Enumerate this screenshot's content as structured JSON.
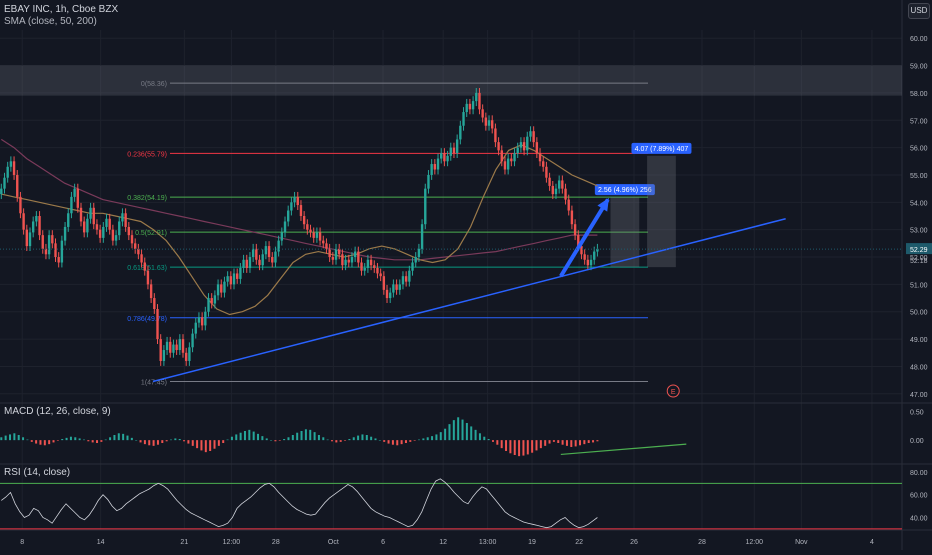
{
  "header": {
    "symbol_line": "EBAY INC, 1h, Cboe BZX",
    "sma_line": "SMA (close, 50, 200)",
    "currency": "USD"
  },
  "colors": {
    "background": "#131722",
    "grid": "#1e222d",
    "candle_up": "#26a69a",
    "candle_down": "#ef5350",
    "sma50": "#9c7a4a",
    "sma200": "#7a3a5a",
    "trendline": "#2962ff",
    "fib_red": "#f23645",
    "fib_gray": "#787b86",
    "fib_green": "#4caf50",
    "fib_teal": "#089981",
    "fib_blue": "#2962ff",
    "macd_pos": "#26a69a",
    "macd_neg": "#ef5350",
    "rsi_line": "#d1d4dc",
    "rsi_upper": "#4caf50",
    "rsi_lower": "#f23645",
    "price_label": "#1e5a6b"
  },
  "chart_data": {
    "type": "candlestick",
    "price_axis": {
      "ylim": [
        46.7,
        60.3
      ],
      "ticks": [
        47,
        48,
        49,
        50,
        51,
        52,
        53,
        54,
        55,
        56,
        57,
        58,
        59,
        60
      ],
      "tick_labels": [
        "47.00",
        "48.00",
        "49.00",
        "50.00",
        "51.00",
        "52.00",
        "53.00",
        "54.00",
        "55.00",
        "56.00",
        "57.00",
        "58.00",
        "59.00",
        "60.00"
      ],
      "current_price": "52.29",
      "current_price_value": 52.29,
      "secondary_label": "52.18",
      "secondary_value": 52.18
    },
    "time_axis": {
      "labels": [
        "8",
        "14",
        "21",
        "12:00",
        "28",
        "Oct",
        "6",
        "12",
        "13:00",
        "19",
        "22",
        "26",
        "28",
        "12:00",
        "Nov",
        "4"
      ],
      "bar_index": [
        8,
        38,
        70,
        88,
        105,
        127,
        146,
        169,
        186,
        203,
        221,
        242,
        268,
        288,
        306,
        333
      ]
    },
    "candles_close": [
      54.5,
      54.9,
      55.3,
      55.5,
      55.0,
      54.2,
      53.6,
      53.0,
      52.4,
      52.9,
      53.3,
      53.5,
      52.8,
      52.3,
      52.1,
      52.8,
      52.5,
      52.0,
      51.8,
      52.6,
      53.1,
      53.6,
      54.2,
      54.5,
      53.8,
      53.3,
      52.9,
      53.4,
      53.8,
      53.2,
      53.0,
      52.7,
      53.1,
      53.4,
      53.0,
      52.6,
      52.8,
      53.3,
      53.6,
      53.1,
      52.8,
      52.5,
      52.3,
      52.1,
      51.8,
      51.5,
      51.0,
      50.5,
      50.1,
      49.0,
      48.2,
      48.6,
      48.9,
      48.5,
      48.8,
      48.6,
      49.0,
      48.5,
      48.2,
      48.7,
      49.2,
      49.6,
      49.8,
      49.5,
      50.0,
      50.5,
      50.3,
      50.6,
      51.0,
      50.7,
      51.1,
      51.3,
      51.0,
      51.4,
      51.2,
      51.6,
      51.9,
      51.6,
      52.0,
      52.3,
      51.9,
      51.7,
      52.1,
      52.4,
      52.0,
      51.8,
      52.2,
      52.6,
      52.9,
      53.3,
      53.7,
      54.0,
      54.2,
      53.9,
      53.5,
      53.2,
      53.0,
      52.9,
      52.7,
      52.9,
      52.6,
      52.5,
      52.3,
      52.0,
      51.9,
      52.3,
      52.1,
      51.7,
      51.9,
      51.8,
      52.0,
      52.2,
      51.8,
      51.5,
      51.6,
      51.9,
      51.7,
      51.6,
      51.4,
      51.3,
      50.8,
      50.5,
      50.7,
      51.0,
      50.8,
      51.0,
      51.3,
      51.1,
      51.5,
      51.8,
      52.0,
      52.3,
      53.2,
      54.5,
      55.0,
      55.4,
      55.2,
      55.6,
      55.8,
      55.5,
      55.7,
      56.0,
      55.8,
      56.3,
      56.8,
      57.3,
      57.6,
      57.4,
      57.7,
      58.0,
      57.4,
      57.1,
      56.8,
      57.0,
      56.7,
      56.2,
      55.9,
      55.5,
      55.2,
      55.6,
      55.5,
      55.8,
      56.0,
      56.2,
      55.9,
      56.4,
      56.6,
      56.2,
      55.8,
      55.5,
      55.3,
      54.9,
      54.6,
      54.3,
      54.5,
      54.8,
      54.5,
      54.1,
      53.7,
      53.2,
      52.8,
      52.4,
      52.1,
      51.9,
      51.7,
      51.9,
      52.2,
      52.3
    ],
    "sma50_values": [
      54.3,
      54.2,
      54.1,
      54.0,
      53.9,
      53.8,
      53.7,
      53.6,
      53.6,
      53.5,
      53.4,
      53.3,
      53.0,
      52.6,
      52.0,
      51.3,
      50.6,
      50.1,
      49.9,
      50.0,
      50.2,
      50.6,
      51.2,
      51.8,
      52.1,
      52.2,
      52.1,
      52.0,
      52.1,
      52.3,
      52.4,
      52.3,
      52.1,
      51.9,
      51.8,
      51.9,
      52.3,
      53.1,
      54.2,
      55.2,
      55.9,
      56.1,
      55.9,
      55.6,
      55.3,
      55.0,
      54.8,
      54.6
    ],
    "sma200_values": [
      56.3,
      56.0,
      55.6,
      55.3,
      55.0,
      54.7,
      54.5,
      54.3,
      54.1,
      54.0,
      53.9,
      53.8,
      53.7,
      53.6,
      53.5,
      53.4,
      53.3,
      53.2,
      53.1,
      53.0,
      52.9,
      52.8,
      52.7,
      52.6,
      52.5,
      52.4,
      52.3,
      52.2,
      52.1,
      52.0,
      51.95,
      51.9,
      51.9,
      51.9,
      51.95,
      52.0,
      52.05,
      52.1,
      52.15,
      52.2,
      52.3,
      52.4,
      52.5,
      52.6,
      52.7,
      52.8,
      52.8,
      52.8
    ],
    "fibonacci": [
      {
        "label": "0(58.36)",
        "price": 58.36,
        "tone": "gray"
      },
      {
        "label": "0.236(55.79)",
        "price": 55.79,
        "tone": "red"
      },
      {
        "label": "0.382(54.19)",
        "price": 54.19,
        "tone": "green"
      },
      {
        "label": "0.5(52.91)",
        "price": 52.91,
        "tone": "green"
      },
      {
        "label": "0.618(51.63)",
        "price": 51.63,
        "tone": "teal"
      },
      {
        "label": "0.786(49.78)",
        "price": 49.78,
        "tone": "blue"
      },
      {
        "label": "1(47.45)",
        "price": 47.45,
        "tone": "gray"
      }
    ],
    "resistance_zone": [
      57.9,
      59.0
    ],
    "trendline": {
      "from": {
        "bar": 58,
        "price": 47.45
      },
      "to": {
        "bar": 300,
        "price": 53.4
      }
    },
    "arrow": {
      "from": {
        "bar": 214,
        "price": 51.3
      },
      "to": {
        "bar": 232,
        "price": 54.1
      }
    },
    "projections": [
      {
        "label": "2.56 (4.96%) 256",
        "from_price": 51.63,
        "to_price": 54.19,
        "bar_from": 233,
        "bar_to": 244
      },
      {
        "label": "4.07 (7.89%) 407",
        "from_price": 51.63,
        "to_price": 55.7,
        "bar_from": 247,
        "bar_to": 258
      }
    ],
    "earnings_marker": {
      "label": "E",
      "bar": 257
    },
    "macd": {
      "title": "MACD (12, 26, close, 9)",
      "ticks": [
        0.5,
        0.0
      ],
      "tick_labels": [
        "0.50",
        "0.00"
      ],
      "ylim": [
        -0.4,
        0.65
      ],
      "histogram": [
        0.05,
        0.08,
        0.1,
        0.12,
        0.09,
        0.05,
        0.01,
        -0.03,
        -0.06,
        -0.08,
        -0.09,
        -0.07,
        -0.04,
        -0.01,
        0.02,
        0.04,
        0.06,
        0.05,
        0.03,
        0.01,
        -0.02,
        -0.04,
        -0.05,
        -0.03,
        0.01,
        0.05,
        0.09,
        0.12,
        0.11,
        0.08,
        0.04,
        0.0,
        -0.04,
        -0.07,
        -0.09,
        -0.1,
        -0.08,
        -0.05,
        -0.02,
        0.01,
        0.03,
        0.02,
        -0.02,
        -0.06,
        -0.1,
        -0.14,
        -0.18,
        -0.21,
        -0.19,
        -0.15,
        -0.1,
        -0.05,
        0.01,
        0.06,
        0.1,
        0.13,
        0.16,
        0.18,
        0.15,
        0.11,
        0.07,
        0.03,
        0.0,
        -0.02,
        -0.01,
        0.02,
        0.05,
        0.09,
        0.13,
        0.16,
        0.19,
        0.18,
        0.14,
        0.09,
        0.05,
        0.01,
        -0.02,
        -0.04,
        -0.03,
        -0.01,
        0.02,
        0.05,
        0.08,
        0.1,
        0.09,
        0.06,
        0.03,
        0.0,
        -0.03,
        -0.06,
        -0.08,
        -0.09,
        -0.07,
        -0.05,
        -0.03,
        -0.01,
        0.01,
        0.03,
        0.05,
        0.07,
        0.1,
        0.14,
        0.2,
        0.28,
        0.35,
        0.4,
        0.36,
        0.3,
        0.24,
        0.18,
        0.12,
        0.06,
        0.02,
        -0.03,
        -0.08,
        -0.14,
        -0.19,
        -0.23,
        -0.26,
        -0.28,
        -0.27,
        -0.25,
        -0.22,
        -0.18,
        -0.14,
        -0.1,
        -0.06,
        -0.03,
        -0.05,
        -0.08,
        -0.1,
        -0.12,
        -0.11,
        -0.09,
        -0.07,
        -0.05,
        -0.04,
        -0.02
      ],
      "support_line": {
        "from": {
          "bar": 214,
          "value": -0.25
        },
        "to": {
          "bar": 262,
          "value": -0.07
        }
      }
    },
    "rsi": {
      "title": "RSI (14, close)",
      "ticks": [
        80,
        60,
        40
      ],
      "tick_labels": [
        "80.00",
        "60.00",
        "40.00"
      ],
      "ylim": [
        29,
        87
      ],
      "upper": 70,
      "lower": 30,
      "values": [
        55,
        58,
        62,
        52,
        45,
        40,
        42,
        48,
        46,
        40,
        38,
        35,
        41,
        47,
        52,
        48,
        44,
        40,
        38,
        42,
        48,
        55,
        60,
        56,
        50,
        46,
        48,
        52,
        55,
        58,
        61,
        63,
        65,
        68,
        70,
        68,
        65,
        60,
        55,
        51,
        47,
        44,
        42,
        40,
        38,
        36,
        34,
        32,
        33,
        35,
        40,
        48,
        52,
        55,
        58,
        62,
        66,
        69,
        70,
        67,
        62,
        58,
        54,
        50,
        47,
        45,
        43,
        42,
        43,
        48,
        53,
        57,
        60,
        63,
        66,
        69,
        67,
        63,
        58,
        53,
        48,
        45,
        43,
        41,
        40,
        38,
        36,
        34,
        32,
        33,
        38,
        45,
        55,
        65,
        72,
        74,
        71,
        67,
        62,
        58,
        54,
        52,
        58,
        63,
        67,
        65,
        60,
        55,
        50,
        45,
        42,
        40,
        38,
        36,
        35,
        34,
        33,
        32,
        31,
        32,
        35,
        38,
        40,
        36,
        33,
        31,
        32,
        34,
        37,
        40
      ]
    }
  }
}
